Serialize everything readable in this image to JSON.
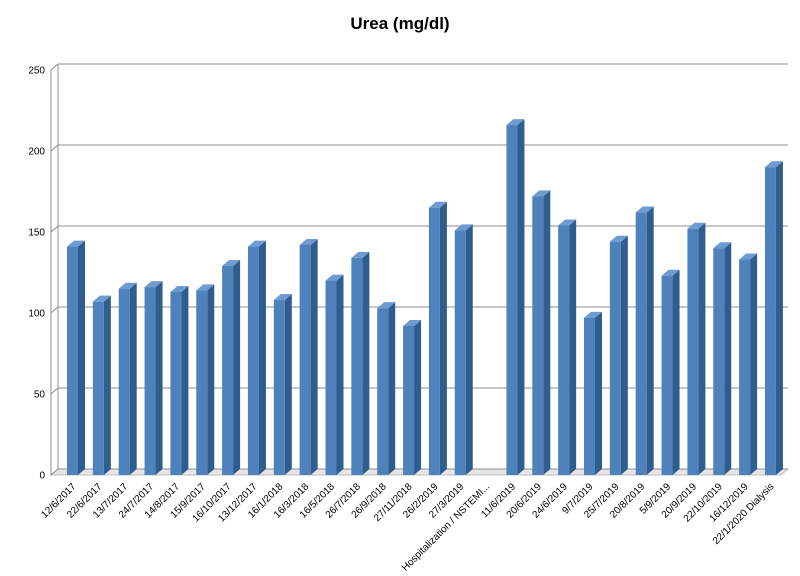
{
  "chart_data": {
    "type": "bar",
    "title": "Urea (mg/dl)",
    "xlabel": "",
    "ylabel": "",
    "ylim": [
      0,
      250
    ],
    "yticks": [
      0,
      50,
      100,
      150,
      200,
      250
    ],
    "grid": true,
    "legend": "none",
    "categories": [
      "12/6/2017",
      "22/6/2017",
      "13/7/2017",
      "24/7/2017",
      "14/8/2017",
      "15/9/2017",
      "16/10/2017",
      "13/12/2017",
      "16/1/2018",
      "16/3/2018",
      "16/5/2018",
      "26/7/2018",
      "26/9/2018",
      "27/11/2018",
      "26/2/2019",
      "27/3/2019",
      "Hospitalization / NSTEMI...",
      "11/6/2019",
      "20/6/2019",
      "24/6/2019",
      "9/7/2019",
      "25/7/2019",
      "20/8/2019",
      "5/9/2019",
      "20/9/2019",
      "22/10/2019",
      "16/12/2019",
      "22/1/2020 Dialysis"
    ],
    "values": [
      141,
      107,
      115,
      116,
      113,
      114,
      129,
      141,
      108,
      142,
      120,
      134,
      103,
      92,
      165,
      151,
      null,
      216,
      172,
      154,
      97,
      144,
      162,
      123,
      152,
      140,
      133,
      190
    ],
    "colors": {
      "bar_front": "#4f81bd",
      "bar_side": "#2f5d8e",
      "bar_top": "#6e9bd1",
      "grid": "#8c8c8c",
      "floor": "#bfbfbf"
    }
  }
}
